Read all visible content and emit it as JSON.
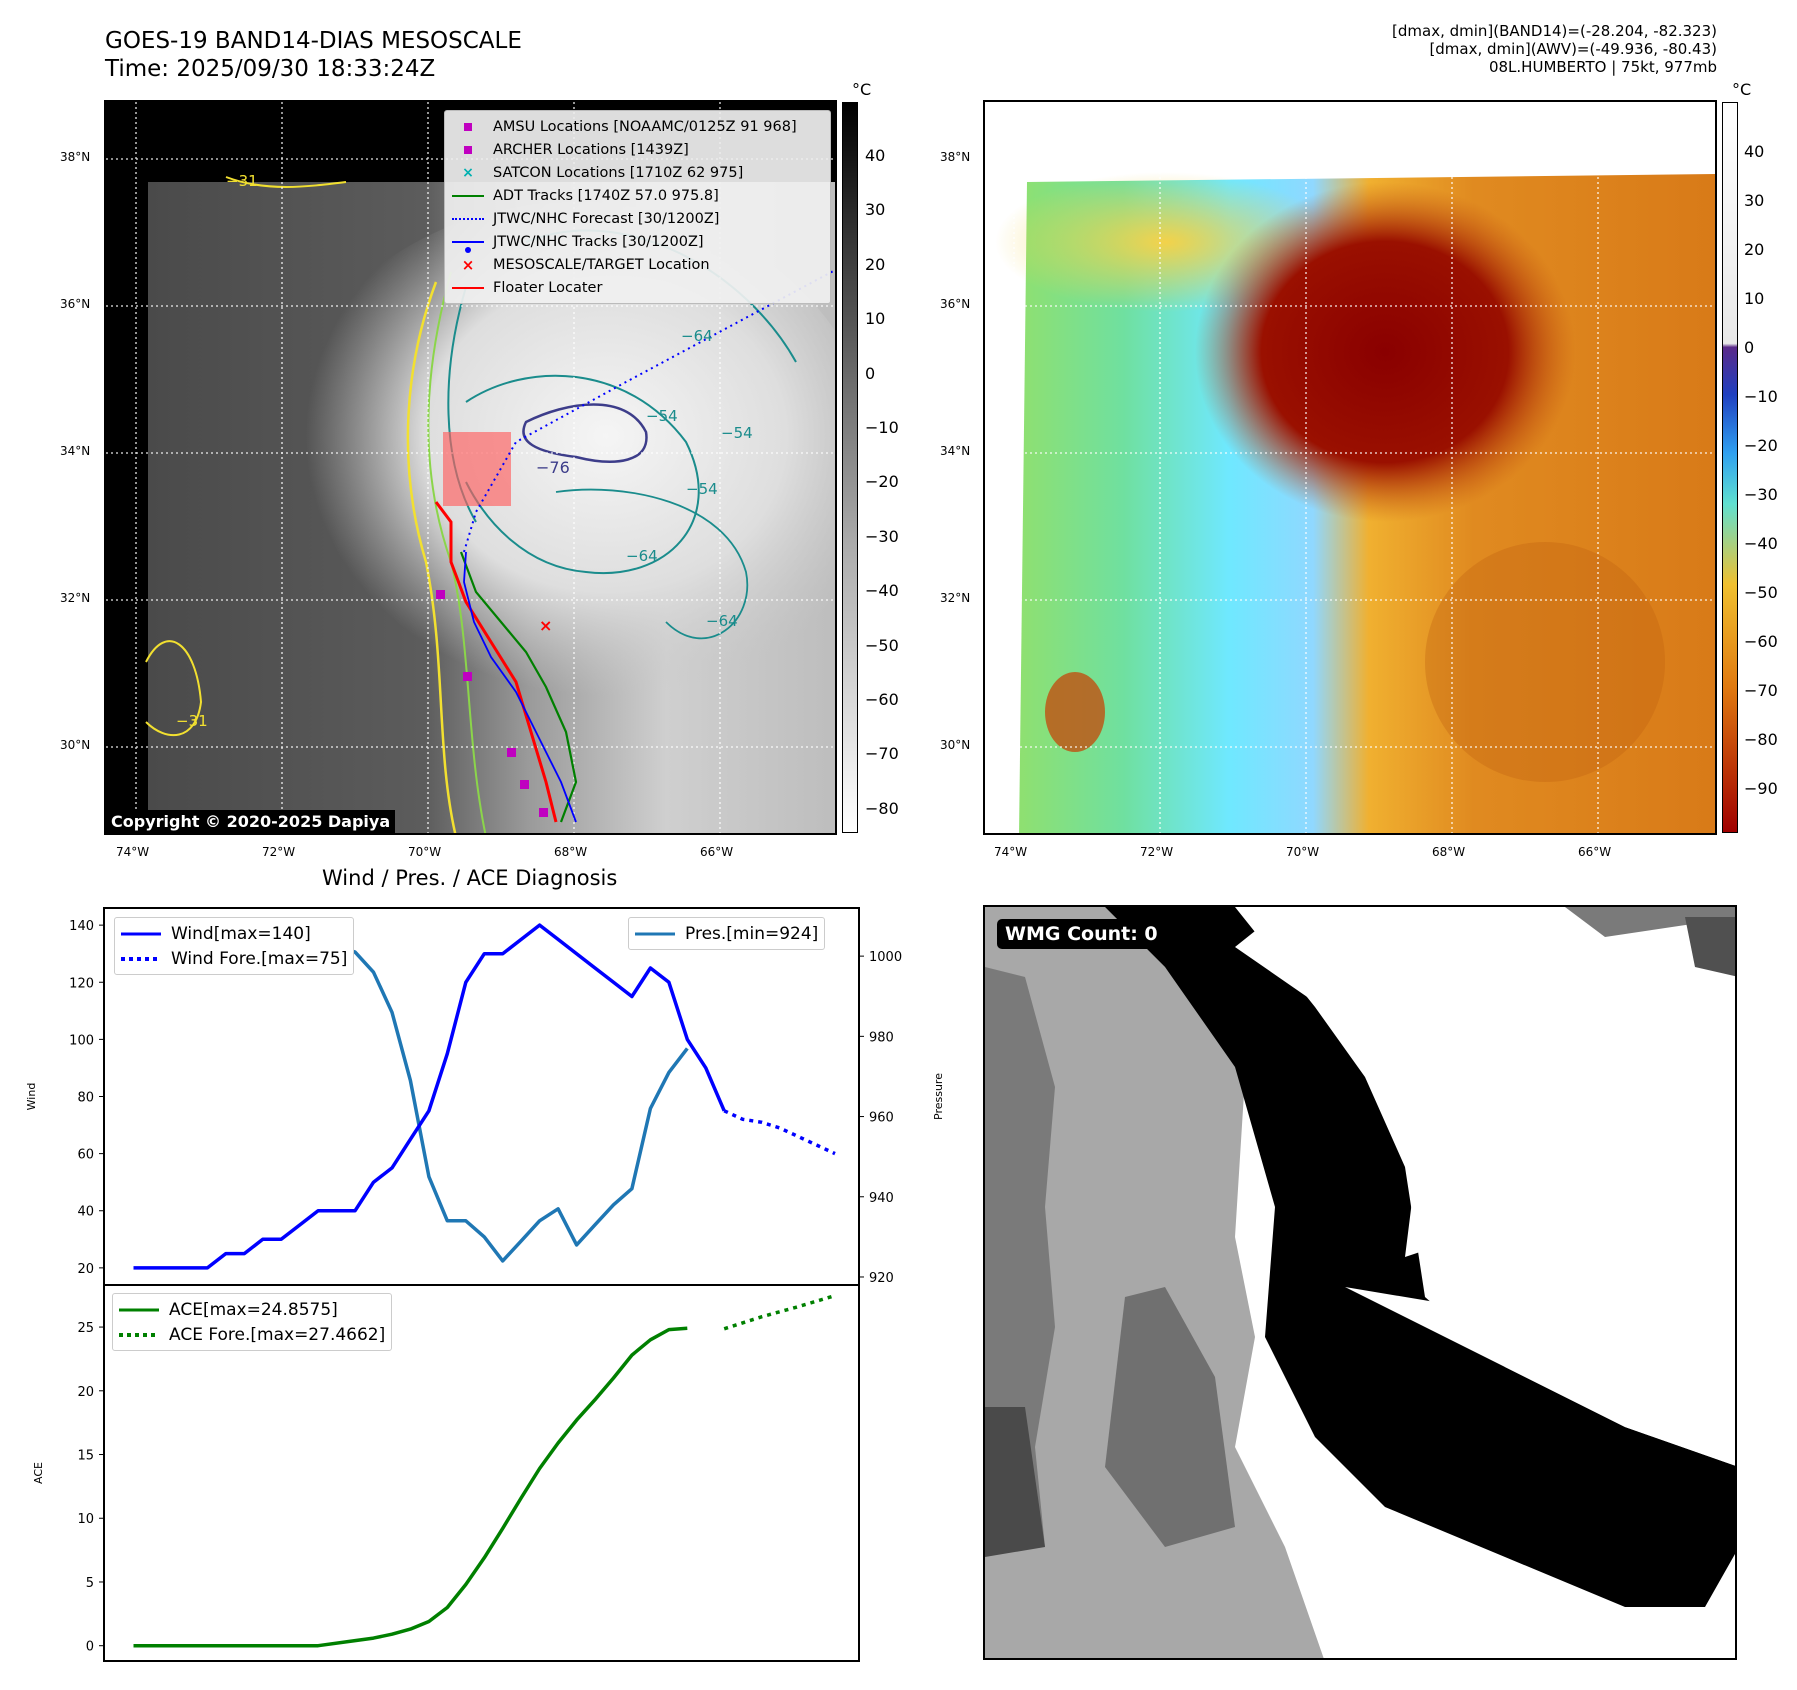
{
  "header": {
    "title_line1": "GOES-19 BAND14-DIAS MESOSCALE",
    "title_line2": "Time: 2025/09/30 18:33:24Z",
    "info_line1": "[dmax, dmin](BAND14)=(-28.204, -82.323)",
    "info_line2": "[dmax, dmin](AWV)=(-49.936, -80.43)",
    "info_line3": "08L.HUMBERTO | 75kt, 977mb"
  },
  "map_axes": {
    "lat_ticks": [
      "38°N",
      "36°N",
      "34°N",
      "32°N",
      "30°N"
    ],
    "lon_ticks": [
      "74°W",
      "72°W",
      "70°W",
      "68°W",
      "66°W"
    ]
  },
  "ir_panel": {
    "colorbar_unit": "°C",
    "colorbar_ticks": [
      "40",
      "30",
      "20",
      "10",
      "0",
      "−10",
      "−20",
      "−30",
      "−40",
      "−50",
      "−60",
      "−70",
      "−80"
    ],
    "copyright": "Copyright © 2020-2025 Dapiya",
    "contour_labels": [
      "−31",
      "−31",
      "−64",
      "−54",
      "−54",
      "−76",
      "−64",
      "−54",
      "−64"
    ],
    "legend": [
      {
        "label": "AMSU Locations [NOAAMC/0125Z 91 968]",
        "color": "#c000c0",
        "marker": "square"
      },
      {
        "label": "ARCHER Locations [1439Z]",
        "color": "#c000c0",
        "marker": "square"
      },
      {
        "label": "SATCON Locations [1710Z 62 975]",
        "color": "#00b0b0",
        "marker": "x"
      },
      {
        "label": "ADT Tracks [1740Z 57.0 975.8]",
        "color": "#008000",
        "marker": "line"
      },
      {
        "label": "JTWC/NHC Forecast [30/1200Z]",
        "color": "#0000ff",
        "marker": "dotted"
      },
      {
        "label": "JTWC/NHC Tracks [30/1200Z]",
        "color": "#0000ff",
        "marker": "line-dot"
      },
      {
        "label": "MESOSCALE/TARGET Location",
        "color": "#ff0000",
        "marker": "x"
      },
      {
        "label": "Floater Locater",
        "color": "#ff0000",
        "marker": "line"
      }
    ]
  },
  "awv_panel": {
    "colorbar_unit": "°C",
    "colorbar_ticks": [
      "40",
      "30",
      "20",
      "10",
      "0",
      "−10",
      "−20",
      "−30",
      "−40",
      "−50",
      "−60",
      "−70",
      "−80",
      "−90"
    ]
  },
  "wmg_panel": {
    "label": "WMG Count: 0"
  },
  "chart_data": [
    {
      "type": "line",
      "title": "Wind / Pres. / ACE Diagnosis",
      "ylabel": "Wind",
      "y2label": "Pressure",
      "ylim": [
        14,
        146
      ],
      "y2lim": [
        918,
        1012
      ],
      "yticks": [
        20,
        40,
        60,
        80,
        100,
        120,
        140
      ],
      "y2ticks": [
        920,
        940,
        960,
        980,
        1000
      ],
      "series": [
        {
          "name": "Wind[max=140]",
          "color": "#0000ff",
          "style": "solid",
          "axis": "left",
          "x": [
            0,
            1,
            2,
            3,
            4,
            5,
            6,
            7,
            8,
            9,
            10,
            11,
            12,
            13,
            14,
            15,
            16,
            17,
            18,
            19,
            20,
            21,
            22,
            23,
            24,
            25,
            26,
            27,
            28,
            29,
            30,
            31,
            32,
            33
          ],
          "values": [
            20,
            20,
            20,
            20,
            20,
            25,
            25,
            30,
            30,
            35,
            40,
            40,
            40,
            50,
            55,
            65,
            75,
            95,
            120,
            130,
            130,
            135,
            140,
            135,
            130,
            125,
            120,
            115,
            125,
            120,
            100,
            90,
            75,
            null
          ]
        },
        {
          "name": "Wind Fore.[max=75]",
          "color": "#0000ff",
          "style": "dotted",
          "axis": "left",
          "x": [
            32,
            33,
            34,
            35,
            38
          ],
          "values": [
            75,
            72,
            71,
            69,
            60
          ]
        },
        {
          "name": "Pres.[min=924]",
          "color": "#1f77b4",
          "style": "solid",
          "axis": "right",
          "x": [
            0,
            2,
            4,
            6,
            8,
            10,
            12,
            13,
            14,
            15,
            16,
            17,
            18,
            19,
            20,
            21,
            22,
            23,
            24,
            25,
            26,
            27,
            28,
            29,
            30,
            31,
            32,
            33
          ],
          "values": [
            1008,
            1008,
            1007,
            1007,
            1006,
            1004,
            1001,
            996,
            986,
            969,
            945,
            934,
            934,
            930,
            924,
            929,
            934,
            937,
            928,
            933,
            938,
            942,
            962,
            971,
            977,
            null,
            null,
            null
          ]
        }
      ],
      "legend_left": [
        "Wind[max=140]",
        "Wind Fore.[max=75]"
      ],
      "legend_right": [
        "Pres.[min=924]"
      ]
    },
    {
      "type": "line",
      "ylabel": "ACE",
      "ylim": [
        -1.2,
        28.3
      ],
      "yticks": [
        0,
        5,
        10,
        15,
        20,
        25
      ],
      "series": [
        {
          "name": "ACE[max=24.8575]",
          "color": "#008000",
          "style": "solid",
          "x": [
            0,
            2,
            4,
            6,
            8,
            10,
            12,
            13,
            14,
            15,
            16,
            17,
            18,
            19,
            20,
            21,
            22,
            23,
            24,
            25,
            26,
            27,
            28,
            29,
            30,
            31,
            32
          ],
          "values": [
            0,
            0,
            0,
            0,
            0,
            0,
            0.4,
            0.6,
            0.9,
            1.3,
            1.9,
            3.0,
            4.8,
            6.9,
            9.2,
            11.6,
            13.9,
            15.9,
            17.7,
            19.3,
            21.0,
            22.8,
            24.0,
            24.8,
            24.9,
            null,
            null
          ]
        },
        {
          "name": "ACE Fore.[max=27.4662]",
          "color": "#008000",
          "style": "dotted",
          "x": [
            32,
            34,
            36,
            38
          ],
          "values": [
            24.86,
            25.8,
            26.6,
            27.47
          ]
        }
      ],
      "legend": [
        "ACE[max=24.8575]",
        "ACE Fore.[max=27.4662]"
      ]
    }
  ]
}
